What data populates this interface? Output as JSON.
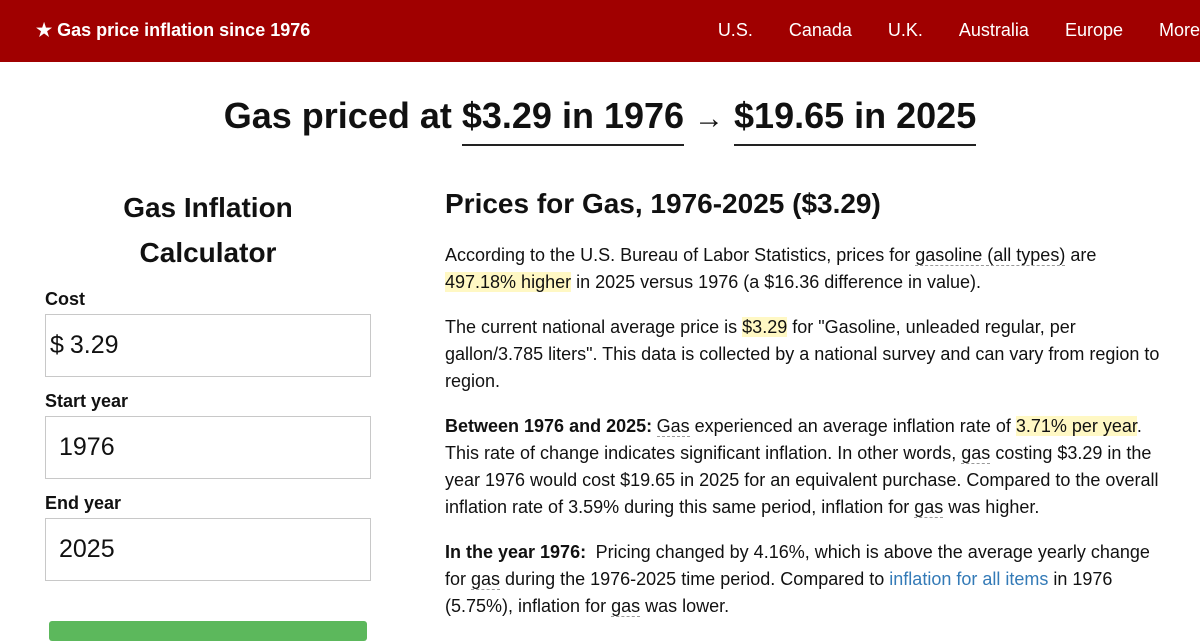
{
  "nav": {
    "brand": "★ Gas price inflation since 1976",
    "links": [
      "U.S.",
      "Canada",
      "U.K.",
      "Australia",
      "Europe",
      "More"
    ]
  },
  "headline": {
    "prefix": "Gas priced at",
    "from": "$3.29 in 1976",
    "arrow": "→",
    "to": "$19.65 in 2025"
  },
  "calculator": {
    "title": "Gas Inflation Calculator",
    "fields": [
      {
        "label": "Cost",
        "prefix": "$",
        "value": "3.29"
      },
      {
        "label": "Start year",
        "value": "1976"
      },
      {
        "label": "End year",
        "value": "2025"
      }
    ]
  },
  "article": {
    "title": "Prices for Gas, 1976-2025 ($3.29)",
    "paragraphs": [
      [
        {
          "text": "According to the U.S. Bureau of Labor Statistics, prices for ",
          "style": "plain"
        },
        {
          "text": "gasoline (all types)",
          "style": "term"
        },
        {
          "text": " are ",
          "style": "plain"
        },
        {
          "text": "497.18% higher",
          "style": "highlight"
        },
        {
          "text": " in 2025 versus 1976 (a $16.36 difference in value).",
          "style": "plain"
        }
      ],
      [
        {
          "text": "The current national average price is ",
          "style": "plain"
        },
        {
          "text": "$3.29",
          "style": "highlight"
        },
        {
          "text": " for \"Gasoline, unleaded regular, per gallon/3.785 liters\". This data is collected by a national survey and can vary from region to region.",
          "style": "plain"
        }
      ],
      [
        {
          "text": "Between 1976 and 2025:",
          "style": "bold"
        },
        {
          "text": "Gas",
          "style": "term"
        },
        {
          "text": " experienced an average inflation rate of ",
          "style": "plain"
        },
        {
          "text": "3.71% per year",
          "style": "highlight"
        },
        {
          "text": ". This rate of change indicates significant inflation. In other words, ",
          "style": "plain"
        },
        {
          "text": "gas",
          "style": "term"
        },
        {
          "text": " costing $3.29 in the year 1976 would cost $19.65 in 2025 for an equivalent purchase. Compared to the overall inflation rate of 3.59% during this same period, inflation for ",
          "style": "plain"
        },
        {
          "text": "gas",
          "style": "term"
        },
        {
          "text": " was higher.",
          "style": "plain"
        }
      ],
      [
        {
          "text": "In the year 1976:",
          "style": "bold"
        },
        {
          "text": " Pricing changed by 4.16%, which is above the average yearly change for ",
          "style": "plain"
        },
        {
          "text": "gas",
          "style": "term"
        },
        {
          "text": " during the 1976-2025 time period. Compared to ",
          "style": "plain"
        },
        {
          "text": "inflation for all items",
          "style": "link"
        },
        {
          "text": " in 1976 (5.75%), inflation for ",
          "style": "plain"
        },
        {
          "text": "gas",
          "style": "term"
        },
        {
          "text": " was lower.",
          "style": "plain"
        }
      ]
    ]
  }
}
